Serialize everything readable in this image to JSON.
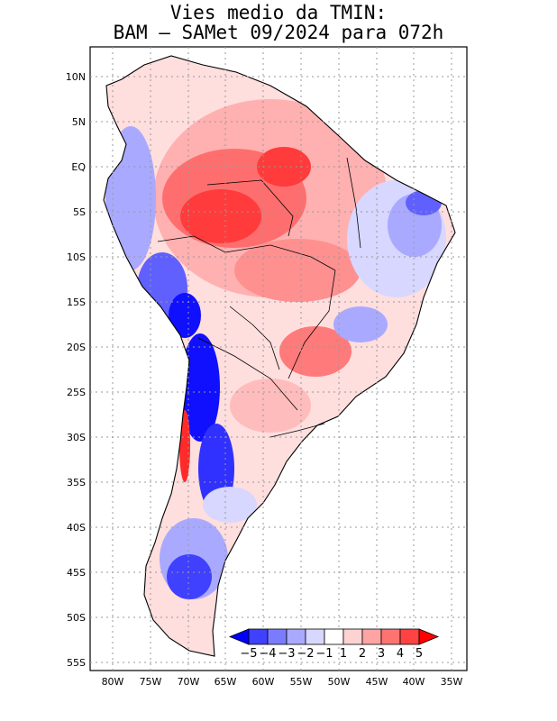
{
  "title_line1": "Vies medio da TMIN:",
  "title_line2": "BAM – SAMet 09/2024  para 072h",
  "lat_labels": [
    "10N",
    "5N",
    "EQ",
    "5S",
    "10S",
    "15S",
    "20S",
    "25S",
    "30S",
    "35S",
    "40S",
    "45S",
    "50S",
    "55S"
  ],
  "lon_labels": [
    "80W",
    "75W",
    "70W",
    "65W",
    "60W",
    "55W",
    "50W",
    "45W",
    "40W",
    "35W"
  ],
  "colorbar": {
    "labels": [
      "−5",
      "−4",
      "−3",
      "−2",
      "−1",
      "1",
      "2",
      "3",
      "4",
      "5"
    ],
    "colors": [
      "#0000ff",
      "#4040ff",
      "#7b7bff",
      "#a9a9ff",
      "#d7d7ff",
      "#ffffff",
      "#ffd2d2",
      "#ffa4a4",
      "#ff7272",
      "#ff4242",
      "#ff0000"
    ]
  },
  "map_colors": {
    "strong_red": "#ff3b3b",
    "red": "#ff6e6e",
    "light_red": "#ffb0b0",
    "pale_red": "#ffdede",
    "pale_blue": "#d7d7ff",
    "light_blue": "#a9a9ff",
    "blue": "#6060ff",
    "strong_blue": "#1010ff"
  }
}
